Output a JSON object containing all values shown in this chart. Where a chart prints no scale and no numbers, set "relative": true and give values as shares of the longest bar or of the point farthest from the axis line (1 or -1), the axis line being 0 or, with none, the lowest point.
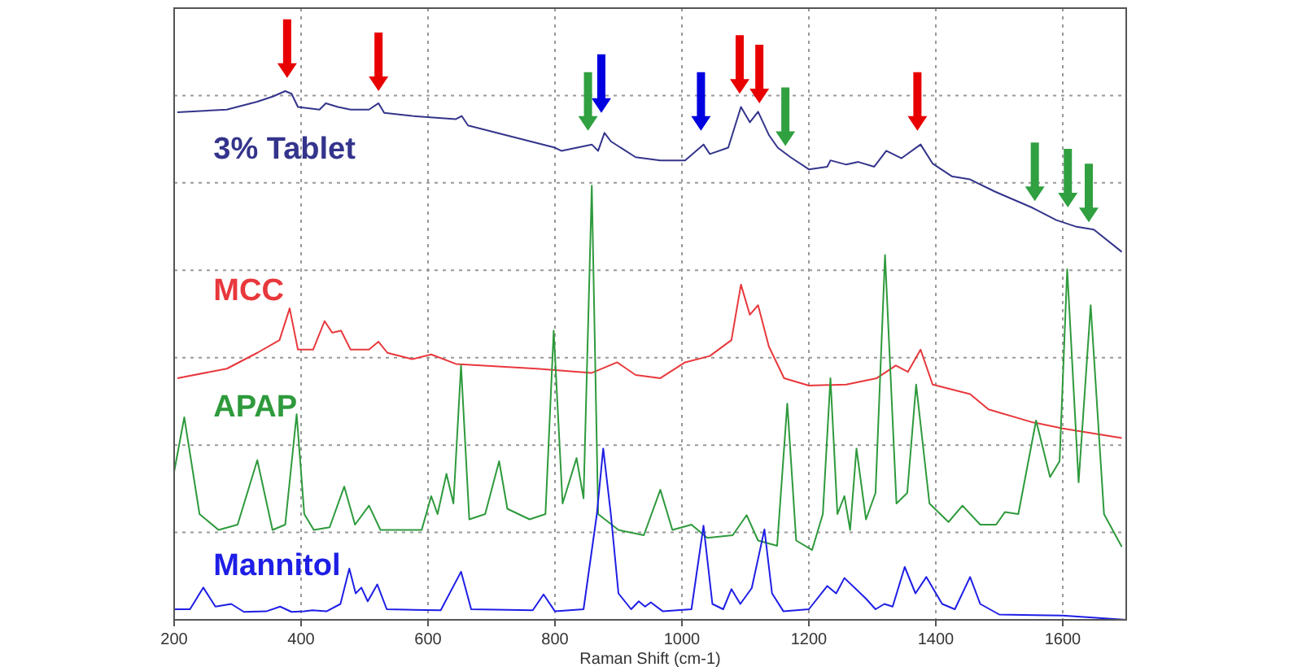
{
  "chart_data": {
    "type": "line",
    "relative": true,
    "xlabel": "Raman Shift (cm-1)",
    "xlim": [
      200,
      1700
    ],
    "xticks": [
      200,
      400,
      600,
      800,
      1000,
      1200,
      1400,
      1600
    ],
    "grid": true,
    "tick_labels": "x",
    "line_style": "solid",
    "series": [
      {
        "name": "3% Tablet",
        "color": "#34348c",
        "x": [
          205,
          283,
          331,
          356,
          375,
          385,
          395,
          429,
          439,
          458,
          478,
          507,
          522,
          531,
          575,
          644,
          653,
          663,
          722,
          800,
          810,
          858,
          868,
          878,
          888,
          927,
          966,
          1005,
          1034,
          1044,
          1073,
          1093,
          1107,
          1120,
          1137,
          1151,
          1171,
          1200,
          1229,
          1234,
          1259,
          1278,
          1303,
          1322,
          1346,
          1376,
          1395,
          1425,
          1454,
          1493,
          1551,
          1590,
          1620,
          1649,
          1693
        ],
        "values": [
          0.96,
          0.965,
          0.98,
          0.99,
          1.0,
          0.995,
          0.97,
          0.965,
          0.977,
          0.97,
          0.965,
          0.965,
          0.977,
          0.959,
          0.953,
          0.947,
          0.953,
          0.935,
          0.917,
          0.893,
          0.887,
          0.899,
          0.887,
          0.921,
          0.905,
          0.875,
          0.869,
          0.869,
          0.899,
          0.881,
          0.893,
          0.97,
          0.941,
          0.961,
          0.917,
          0.893,
          0.875,
          0.852,
          0.857,
          0.869,
          0.861,
          0.866,
          0.857,
          0.887,
          0.873,
          0.899,
          0.863,
          0.839,
          0.833,
          0.81,
          0.78,
          0.756,
          0.744,
          0.738,
          0.696
        ]
      },
      {
        "name": "MCC",
        "color": "#e8383c",
        "x": [
          205,
          283,
          331,
          366,
          382,
          395,
          419,
          437,
          449,
          463,
          478,
          507,
          522,
          536,
          575,
          605,
          644,
          771,
          858,
          898,
          927,
          966,
          1005,
          1044,
          1078,
          1093,
          1107,
          1120,
          1137,
          1161,
          1200,
          1259,
          1307,
          1337,
          1356,
          1376,
          1395,
          1454,
          1483,
          1551,
          1600,
          1693
        ],
        "values": [
          0.457,
          0.475,
          0.505,
          0.529,
          0.589,
          0.511,
          0.511,
          0.565,
          0.543,
          0.547,
          0.511,
          0.511,
          0.526,
          0.505,
          0.493,
          0.502,
          0.484,
          0.475,
          0.467,
          0.487,
          0.463,
          0.457,
          0.487,
          0.499,
          0.529,
          0.634,
          0.577,
          0.595,
          0.517,
          0.457,
          0.443,
          0.445,
          0.457,
          0.481,
          0.469,
          0.511,
          0.445,
          0.427,
          0.398,
          0.374,
          0.362,
          0.344
        ]
      },
      {
        "name": "APAP",
        "color": "#2e9a3c",
        "x": [
          200,
          216,
          240,
          270,
          300,
          331,
          355,
          375,
          393,
          405,
          420,
          445,
          468,
          485,
          507,
          525,
          590,
          605,
          615,
          629,
          640,
          652,
          665,
          690,
          712,
          725,
          760,
          785,
          798,
          812,
          834,
          845,
          858,
          868,
          900,
          940,
          966,
          985,
          1015,
          1040,
          1080,
          1102,
          1120,
          1150,
          1166,
          1180,
          1205,
          1222,
          1234,
          1245,
          1256,
          1265,
          1275,
          1290,
          1305,
          1320,
          1338,
          1355,
          1369,
          1390,
          1420,
          1442,
          1470,
          1495,
          1509,
          1530,
          1558,
          1580,
          1595,
          1607,
          1625,
          1644,
          1665,
          1693
        ],
        "values": [
          0.28,
          0.383,
          0.2,
          0.17,
          0.18,
          0.302,
          0.17,
          0.18,
          0.389,
          0.2,
          0.17,
          0.175,
          0.252,
          0.18,
          0.216,
          0.17,
          0.17,
          0.234,
          0.2,
          0.276,
          0.22,
          0.481,
          0.19,
          0.2,
          0.3,
          0.21,
          0.19,
          0.2,
          0.547,
          0.22,
          0.306,
          0.23,
          0.821,
          0.2,
          0.17,
          0.16,
          0.246,
          0.17,
          0.18,
          0.155,
          0.16,
          0.198,
          0.15,
          0.14,
          0.409,
          0.15,
          0.132,
          0.2,
          0.457,
          0.2,
          0.234,
          0.17,
          0.324,
          0.19,
          0.24,
          0.69,
          0.22,
          0.24,
          0.445,
          0.22,
          0.185,
          0.216,
          0.18,
          0.18,
          0.204,
          0.2,
          0.377,
          0.27,
          0.3,
          0.663,
          0.26,
          0.595,
          0.2,
          0.138
        ]
      },
      {
        "name": "Mannitol",
        "color": "#1e1ee6",
        "x": [
          200,
          225,
          246,
          265,
          290,
          310,
          345,
          367,
          385,
          405,
          418,
          440,
          462,
          476,
          486,
          495,
          505,
          520,
          535,
          620,
          652,
          668,
          765,
          782,
          800,
          845,
          866,
          876,
          888,
          900,
          920,
          932,
          942,
          951,
          970,
          1015,
          1034,
          1048,
          1065,
          1078,
          1092,
          1110,
          1130,
          1142,
          1160,
          1200,
          1229,
          1243,
          1256,
          1290,
          1305,
          1319,
          1332,
          1351,
          1368,
          1385,
          1410,
          1430,
          1454,
          1470,
          1500,
          1600,
          1700
        ],
        "values": [
          0.02,
          0.02,
          0.061,
          0.025,
          0.03,
          0.015,
          0.016,
          0.025,
          0.015,
          0.016,
          0.018,
          0.016,
          0.03,
          0.097,
          0.05,
          0.061,
          0.035,
          0.067,
          0.02,
          0.018,
          0.091,
          0.02,
          0.018,
          0.048,
          0.016,
          0.02,
          0.2,
          0.324,
          0.2,
          0.05,
          0.02,
          0.035,
          0.025,
          0.033,
          0.016,
          0.02,
          0.178,
          0.03,
          0.02,
          0.058,
          0.03,
          0.06,
          0.171,
          0.05,
          0.016,
          0.02,
          0.064,
          0.05,
          0.079,
          0.04,
          0.02,
          0.03,
          0.025,
          0.1,
          0.05,
          0.081,
          0.03,
          0.02,
          0.081,
          0.03,
          0.01,
          0.008,
          0
        ]
      }
    ]
  }
}
